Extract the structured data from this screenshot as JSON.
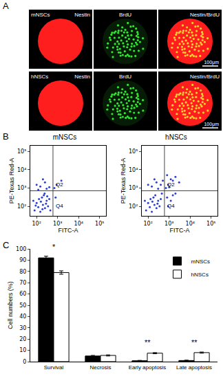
{
  "chart_data": [
    {
      "type": "image_grid",
      "panel": "A",
      "rows": [
        "mNSCs",
        "hNSCs"
      ],
      "columns": [
        "Nestin",
        "BrdU",
        "Nestin/BrdU"
      ],
      "colors": [
        "#ff1e1e",
        "#2ee82e",
        "#ffd030"
      ],
      "scale_bar": "100μm"
    },
    {
      "type": "scatter",
      "panel": "B",
      "title": "mNSCs",
      "x_label": "FITC-A",
      "y_label": "PE-Texas Red-A",
      "log": true,
      "xlim": [
        50,
        200000
      ],
      "ylim": [
        30,
        200000
      ],
      "xticks": [
        {
          "value": 100,
          "label": "10²"
        },
        {
          "value": 1000,
          "label": "10³"
        },
        {
          "value": 10000,
          "label": "10⁴"
        },
        {
          "value": 100000,
          "label": "10⁵"
        }
      ],
      "yticks": [
        {
          "value": 100,
          "label": "10²"
        },
        {
          "value": 1000,
          "label": "10³"
        },
        {
          "value": 10000,
          "label": "10⁴"
        },
        {
          "value": 100000,
          "label": "10⁵"
        }
      ],
      "color": "#2a3fd0",
      "gate": {
        "x": 600,
        "y": 700
      },
      "quadrant_labels": [
        "Q2",
        "Q4"
      ],
      "x": [
        80,
        120,
        150,
        200,
        250,
        300,
        180,
        100,
        350,
        400,
        220,
        130,
        90,
        160,
        280,
        450,
        320,
        70,
        240,
        190,
        150,
        250,
        100,
        300,
        200,
        400,
        120,
        900,
        1500,
        700,
        800
      ],
      "y": [
        60,
        90,
        50,
        120,
        80,
        200,
        300,
        150,
        100,
        250,
        400,
        250,
        110,
        180,
        140,
        60,
        350,
        200,
        500,
        70,
        1200,
        2000,
        1500,
        900,
        3000,
        1100,
        800,
        1500,
        2500,
        1000,
        300
      ]
    },
    {
      "type": "scatter",
      "panel": "B",
      "title": "hNSCs",
      "x_label": "FITC-A",
      "y_label": "PE-Texas Red-A",
      "log": true,
      "xlim": [
        50,
        200000
      ],
      "ylim": [
        30,
        200000
      ],
      "xticks": [
        {
          "value": 100,
          "label": "10²"
        },
        {
          "value": 1000,
          "label": "10³"
        },
        {
          "value": 10000,
          "label": "10⁴"
        },
        {
          "value": 100000,
          "label": "10⁵"
        }
      ],
      "yticks": [
        {
          "value": 100,
          "label": "10²"
        },
        {
          "value": 1000,
          "label": "10³"
        },
        {
          "value": 10000,
          "label": "10⁴"
        },
        {
          "value": 100000,
          "label": "10⁵"
        }
      ],
      "color": "#2a3fd0",
      "gate": {
        "x": 600,
        "y": 700
      },
      "quadrant_labels": [
        "Q2",
        "Q4"
      ],
      "x": [
        80,
        120,
        150,
        200,
        250,
        300,
        180,
        100,
        350,
        400,
        220,
        130,
        160,
        280,
        450,
        70,
        150,
        250,
        100,
        300,
        200,
        400,
        500,
        900,
        1500,
        700,
        2000,
        1200,
        3000,
        800,
        1000,
        800,
        1200,
        2000,
        900,
        1500
      ],
      "y": [
        60,
        90,
        50,
        120,
        80,
        200,
        300,
        150,
        100,
        250,
        400,
        250,
        180,
        140,
        500,
        200,
        1200,
        2000,
        1500,
        900,
        3000,
        1500,
        2500,
        1500,
        2500,
        1000,
        4000,
        3000,
        2000,
        5000,
        1100,
        300,
        200,
        500,
        100,
        400
      ]
    },
    {
      "type": "bar",
      "panel": "C",
      "y_label": "Cell numbers (%)",
      "categories": [
        "Survival",
        "Necrosis",
        "Early apoptosis",
        "Late apoptosis"
      ],
      "series": [
        {
          "name": "mNSCs",
          "color": "#000000",
          "values": [
            92,
            5,
            0.8,
            1
          ],
          "errors": [
            1.5,
            0.5,
            0.3,
            0.3
          ]
        },
        {
          "name": "hNSCs",
          "color": "#ffffff",
          "values": [
            79,
            5.5,
            7.5,
            8
          ],
          "errors": [
            1.5,
            0.5,
            0.5,
            0.5
          ]
        }
      ],
      "ylim": [
        0,
        100
      ],
      "yticks": [
        0,
        10,
        20,
        30,
        40,
        50,
        60,
        70,
        80,
        90,
        100
      ],
      "legend": "top right",
      "annotations": [
        {
          "category": "Survival",
          "text": "*",
          "y": 97
        },
        {
          "category": "Early apoptosis",
          "text": "**",
          "y": 12
        },
        {
          "category": "Late apoptosis",
          "text": "**",
          "y": 12
        }
      ]
    }
  ]
}
